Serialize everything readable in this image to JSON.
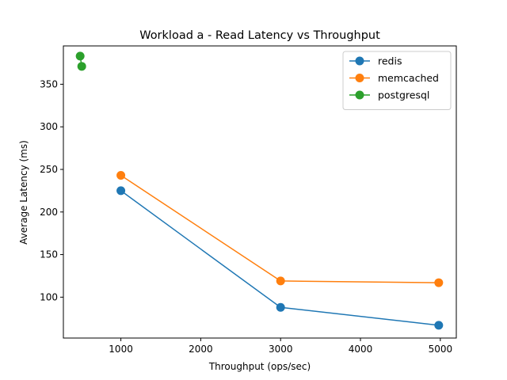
{
  "chart_data": {
    "type": "line",
    "title": "Workload a - Read Latency vs Throughput",
    "xlabel": "Throughput (ops/sec)",
    "ylabel": "Average Latency (ms)",
    "xlim": [
      280,
      5200
    ],
    "ylim": [
      52,
      395
    ],
    "xticks": [
      1000,
      2000,
      3000,
      4000,
      5000
    ],
    "yticks": [
      100,
      150,
      200,
      250,
      300,
      350
    ],
    "grid": false,
    "legend_position": "top-right",
    "series": [
      {
        "name": "redis",
        "color": "#1f77b4",
        "points": [
          [
            1000,
            225
          ],
          [
            3000,
            88
          ],
          [
            4980,
            67
          ]
        ]
      },
      {
        "name": "memcached",
        "color": "#ff7f0e",
        "points": [
          [
            1000,
            243
          ],
          [
            3000,
            119
          ],
          [
            4980,
            117
          ]
        ]
      },
      {
        "name": "postgresql",
        "color": "#2ca02c",
        "points": [
          [
            490,
            383
          ],
          [
            510,
            371
          ]
        ]
      }
    ]
  }
}
